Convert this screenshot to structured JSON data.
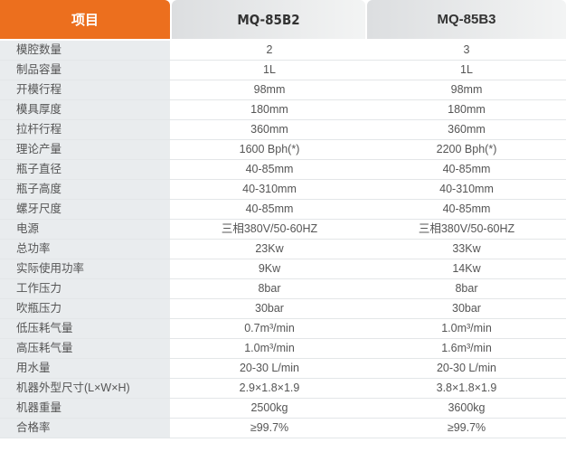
{
  "header": {
    "item": "项目",
    "model_a": "MQ-85B2",
    "model_b": "MQ-85B3"
  },
  "colors": {
    "accent": "#ec6f1e",
    "label_bg": "#e9ecee"
  },
  "rows": [
    {
      "label": "模腔数量",
      "a": "2",
      "b": "3"
    },
    {
      "label": "制品容量",
      "a": "1L",
      "b": "1L"
    },
    {
      "label": "开模行程",
      "a": "98mm",
      "b": "98mm"
    },
    {
      "label": "模具厚度",
      "a": "180mm",
      "b": "180mm"
    },
    {
      "label": "拉杆行程",
      "a": "360mm",
      "b": "360mm"
    },
    {
      "label": "理论产量",
      "a": "1600 Bph(*)",
      "b": "2200 Bph(*)"
    },
    {
      "label": "瓶子直径",
      "a": "40-85mm",
      "b": "40-85mm"
    },
    {
      "label": "瓶子高度",
      "a": "40-310mm",
      "b": "40-310mm"
    },
    {
      "label": "螺牙尺度",
      "a": "40-85mm",
      "b": "40-85mm"
    },
    {
      "label": "电源",
      "a": "三相380V/50-60HZ",
      "b": "三相380V/50-60HZ"
    },
    {
      "label": "总功率",
      "a": "23Kw",
      "b": "33Kw"
    },
    {
      "label": "实际使用功率",
      "a": "9Kw",
      "b": "14Kw"
    },
    {
      "label": "工作压力",
      "a": "8bar",
      "b": "8bar"
    },
    {
      "label": "吹瓶压力",
      "a": "30bar",
      "b": "30bar"
    },
    {
      "label": "低压耗气量",
      "a": "0.7m³/min",
      "b": "1.0m³/min"
    },
    {
      "label": "高压耗气量",
      "a": "1.0m³/min",
      "b": "1.6m³/min"
    },
    {
      "label": "用水量",
      "a": "20-30 L/min",
      "b": "20-30 L/min"
    },
    {
      "label": "机器外型尺寸(L×W×H)",
      "a": "2.9×1.8×1.9",
      "b": "3.8×1.8×1.9"
    },
    {
      "label": "机器重量",
      "a": "2500kg",
      "b": "3600kg"
    },
    {
      "label": "合格率",
      "a": "≥99.7%",
      "b": "≥99.7%"
    }
  ]
}
